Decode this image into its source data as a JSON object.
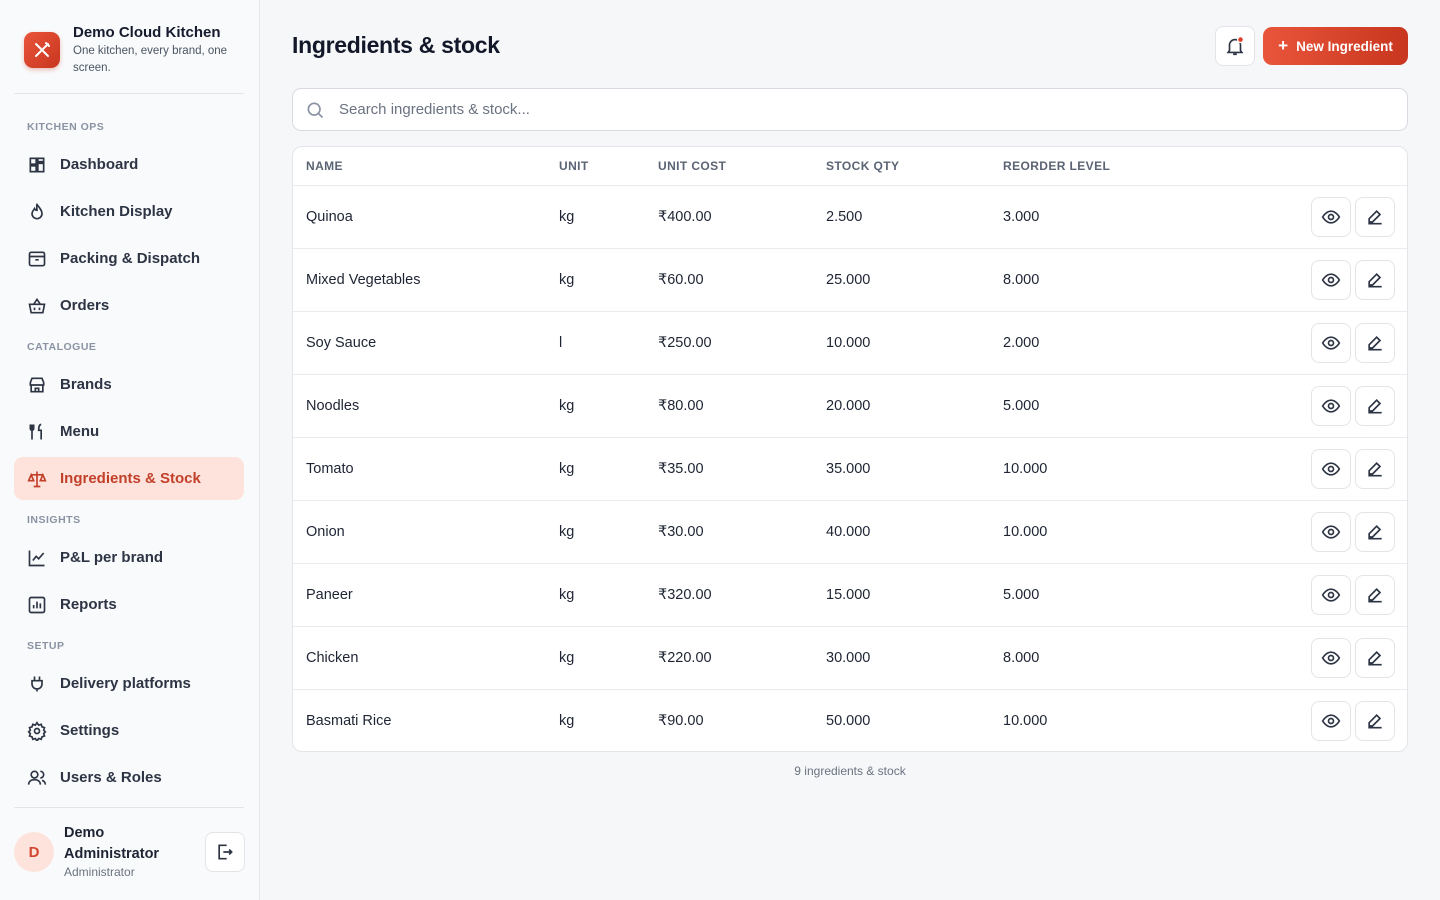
{
  "brand": {
    "name": "Demo Cloud Kitchen",
    "tagline": "One kitchen, every brand, one screen."
  },
  "nav": [
    {
      "section": "KITCHEN OPS",
      "items": [
        {
          "label": "Dashboard"
        },
        {
          "label": "Kitchen Display"
        },
        {
          "label": "Packing & Dispatch"
        },
        {
          "label": "Orders"
        }
      ]
    },
    {
      "section": "CATALOGUE",
      "items": [
        {
          "label": "Brands"
        },
        {
          "label": "Menu"
        },
        {
          "label": "Ingredients & Stock",
          "active": true
        }
      ]
    },
    {
      "section": "INSIGHTS",
      "items": [
        {
          "label": "P&L per brand"
        },
        {
          "label": "Reports"
        }
      ]
    },
    {
      "section": "SETUP",
      "items": [
        {
          "label": "Delivery platforms"
        },
        {
          "label": "Settings"
        },
        {
          "label": "Users & Roles"
        }
      ]
    }
  ],
  "user": {
    "initial": "D",
    "name": "Demo Administrator",
    "role": "Administrator"
  },
  "header": {
    "title": "Ingredients & stock",
    "new_button": "New Ingredient"
  },
  "search": {
    "placeholder": "Search ingredients & stock..."
  },
  "table": {
    "columns": [
      "NAME",
      "UNIT",
      "UNIT COST",
      "STOCK QTY",
      "REORDER LEVEL"
    ],
    "rows": [
      [
        "Quinoa",
        "kg",
        "₹400.00",
        "2.500",
        "3.000"
      ],
      [
        "Mixed Vegetables",
        "kg",
        "₹60.00",
        "25.000",
        "8.000"
      ],
      [
        "Soy Sauce",
        "l",
        "₹250.00",
        "10.000",
        "2.000"
      ],
      [
        "Noodles",
        "kg",
        "₹80.00",
        "20.000",
        "5.000"
      ],
      [
        "Tomato",
        "kg",
        "₹35.00",
        "35.000",
        "10.000"
      ],
      [
        "Onion",
        "kg",
        "₹30.00",
        "40.000",
        "10.000"
      ],
      [
        "Paneer",
        "kg",
        "₹320.00",
        "15.000",
        "5.000"
      ],
      [
        "Chicken",
        "kg",
        "₹220.00",
        "30.000",
        "8.000"
      ],
      [
        "Basmati Rice",
        "kg",
        "₹90.00",
        "50.000",
        "10.000"
      ]
    ],
    "footer": "9 ingredients & stock"
  }
}
